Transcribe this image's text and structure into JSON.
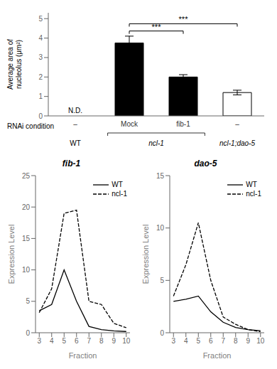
{
  "chart_data": [
    {
      "type": "bar",
      "categories": [
        "–",
        "Mock",
        "fib-1",
        "–"
      ],
      "xlabel": "RNAi condition",
      "ylabel": "Average area of\nnucleolus (μm²)",
      "values": [
        0,
        3.75,
        2.0,
        1.2
      ],
      "errors": [
        0,
        0.35,
        0.12,
        0.12
      ],
      "colors": [
        "black",
        "black",
        "black",
        "white"
      ],
      "edge_colors": [
        "black",
        "black",
        "black",
        "black"
      ],
      "ylim": [
        0,
        5.3
      ],
      "yticks": [
        0,
        1,
        2,
        3,
        4,
        5
      ],
      "annotations": [
        {
          "text": "WT",
          "kind": "group",
          "categories": [
            0
          ]
        },
        {
          "text": "ncl-1",
          "kind": "group",
          "categories": [
            1,
            2
          ]
        },
        {
          "text": "ncl-1;dao-5",
          "kind": "group",
          "categories": [
            3
          ]
        },
        {
          "text": "N.D.",
          "kind": "label",
          "categories": [
            0
          ]
        },
        {
          "text": "***",
          "kind": "bracket",
          "categories": [
            1,
            2
          ]
        },
        {
          "text": "***",
          "kind": "bracket",
          "categories": [
            1,
            3
          ]
        }
      ]
    },
    {
      "type": "line",
      "title": "fib-1",
      "xlabel": "Fraction",
      "ylabel": "Expression Level",
      "xlim": [
        2.7,
        10.3
      ],
      "xticks": [
        3,
        4,
        5,
        6,
        7,
        8,
        9,
        10
      ],
      "ylim": [
        0,
        25
      ],
      "yticks": [
        0,
        5,
        10,
        15,
        20,
        25
      ],
      "legend": "upper right",
      "series": [
        {
          "name": "WT",
          "color": "black",
          "line_style": "solid",
          "x": [
            3,
            4,
            5,
            6,
            7,
            8,
            9,
            10
          ],
          "values": [
            3.5,
            4.5,
            10.0,
            5.0,
            1.0,
            0.5,
            0.3,
            0.2
          ]
        },
        {
          "name": "ncl-1",
          "color": "black",
          "line_style": "dashed",
          "x": [
            3,
            4,
            5,
            6,
            7,
            8,
            9,
            10
          ],
          "values": [
            3.2,
            7.0,
            19.0,
            19.5,
            5.0,
            4.5,
            1.5,
            0.8
          ]
        }
      ]
    },
    {
      "type": "line",
      "title": "dao-5",
      "xlabel": "Fraction",
      "ylabel": "Expression Level",
      "xlim": [
        2.7,
        10.3
      ],
      "xticks": [
        3,
        4,
        5,
        6,
        7,
        8,
        9,
        10
      ],
      "ylim": [
        0,
        15
      ],
      "yticks": [
        0,
        5,
        10,
        15
      ],
      "legend": "upper right",
      "series": [
        {
          "name": "WT",
          "color": "black",
          "line_style": "solid",
          "x": [
            3,
            4,
            5,
            6,
            7,
            8,
            9,
            10
          ],
          "values": [
            3.0,
            3.2,
            3.5,
            2.0,
            1.0,
            0.5,
            0.3,
            0.2
          ]
        },
        {
          "name": "ncl-1",
          "color": "black",
          "line_style": "dashed",
          "x": [
            3,
            4,
            5,
            6,
            7,
            8,
            9,
            10
          ],
          "values": [
            3.5,
            6.5,
            10.5,
            5.0,
            1.5,
            0.8,
            0.3,
            0.1
          ]
        }
      ]
    }
  ]
}
